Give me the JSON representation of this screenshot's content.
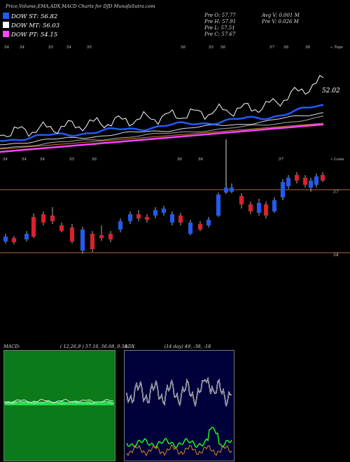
{
  "header": {
    "title": "Price,Volume,EMA,ADX,MACD Charts for DJD MunafaSutra.com"
  },
  "legend": [
    {
      "label": "DOW ST: 56.82",
      "color": "#1e5bff"
    },
    {
      "label": "DOW MT: 56.03",
      "color": "#ffffff"
    },
    {
      "label": "DOW PT: 54.15",
      "color": "#ff44ff"
    }
  ],
  "ohlc": {
    "open": "Pre   O: 57.77",
    "high": "Pre   H: 57.91",
    "low": "Pre   L: 57.51",
    "close": "Pre   C: 57.67",
    "avg_vol": "Avg V: 0.001 M",
    "pre_vol": "Pre   V: 0.026  M"
  },
  "upper_chart": {
    "top_label": "« Tops",
    "top_ticks": [
      "54",
      "54",
      "55",
      "54",
      "55",
      "56",
      "55",
      "56",
      "57",
      "58",
      "58"
    ],
    "last_price_label": "52.02",
    "colors": {
      "price": "#ffffff",
      "ema_short": "#1e5bff",
      "ema_mid1": "#dddddd",
      "ema_mid2": "#aaaaaa",
      "ema_long": "#cc7a22",
      "dow_pt": "#ff44ff"
    }
  },
  "lower_chart": {
    "lows_label": "« Lows",
    "low_ticks": [
      "54",
      "54",
      "54",
      "55",
      "56",
      "56",
      "56",
      "57"
    ],
    "level_hi": "57",
    "level_lo": "54",
    "colors": {
      "up": "#1e5bff",
      "down": "#e0202a",
      "hline": "#b36a3a"
    }
  },
  "macd_panel": {
    "title": "MACD:",
    "params": "( 12,26,9 ) 57.16, 56.68, 0.58",
    "colors": {
      "bg": "#0a7a1a",
      "hist": "#22ff55"
    }
  },
  "adx_panel": {
    "title": "ADX",
    "params": "(14  day) 49, -38, -18",
    "colors": {
      "bg": "#00003a",
      "adx": "#ffffff",
      "plus_di": "#22ff22",
      "minus_di": "#dd8822"
    }
  }
}
